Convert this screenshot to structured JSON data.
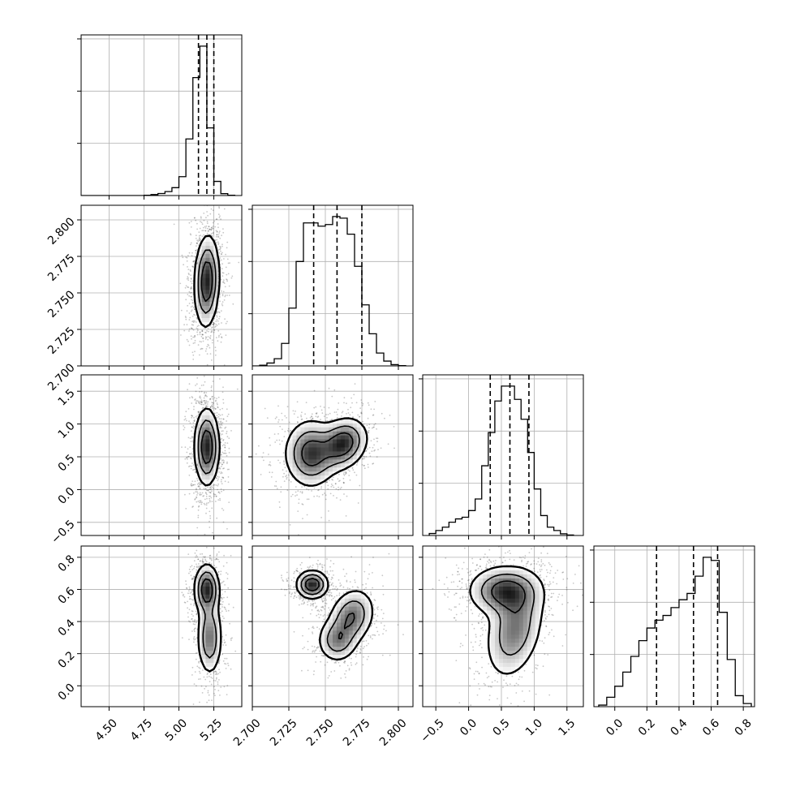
{
  "chart_data": {
    "type": "corner",
    "params": [
      {
        "range": [
          4.3,
          5.45
        ],
        "ticks": [
          4.5,
          4.75,
          5.0,
          5.25
        ],
        "tick_labels": [
          "4.50",
          "4.75",
          "5.00",
          "5.25"
        ],
        "quantiles": [
          5.14,
          5.2,
          5.25
        ]
      },
      {
        "range": [
          2.7,
          2.81
        ],
        "ticks": [
          2.7,
          2.725,
          2.75,
          2.775,
          2.8
        ],
        "tick_labels": [
          "2.700",
          "2.725",
          "2.750",
          "2.775",
          "2.800"
        ],
        "quantiles": [
          2.742,
          2.758,
          2.775
        ]
      },
      {
        "range": [
          -0.7,
          1.75
        ],
        "ticks": [
          -0.5,
          0.0,
          0.5,
          1.0,
          1.5
        ],
        "tick_labels": [
          "−0.5",
          "0.0",
          "0.5",
          "1.0",
          "1.5"
        ],
        "quantiles": [
          0.33,
          0.63,
          0.92
        ]
      },
      {
        "range": [
          -0.13,
          0.87
        ],
        "ticks": [
          0.0,
          0.2,
          0.4,
          0.6,
          0.8
        ],
        "tick_labels": [
          "0.0",
          "0.2",
          "0.4",
          "0.6",
          "0.8"
        ],
        "quantiles": [
          0.26,
          0.49,
          0.64
        ]
      }
    ],
    "histograms": [
      {
        "param": 0,
        "bins": [
          4.3,
          4.35,
          4.4,
          4.45,
          4.5,
          4.55,
          4.6,
          4.65,
          4.7,
          4.75,
          4.8,
          4.85,
          4.9,
          4.95,
          5.0,
          5.05,
          5.1,
          5.15,
          5.2,
          5.25,
          5.3,
          5.35,
          5.4
        ],
        "counts": [
          0,
          0,
          0,
          0,
          0,
          0,
          0,
          0,
          0,
          0.002,
          0.006,
          0.013,
          0.025,
          0.05,
          0.12,
          0.36,
          0.75,
          0.95,
          0.43,
          0.09,
          0.012,
          0.002
        ]
      },
      {
        "param": 1,
        "bins": [
          2.7,
          2.705,
          2.71,
          2.715,
          2.72,
          2.725,
          2.73,
          2.735,
          2.74,
          2.745,
          2.75,
          2.755,
          2.76,
          2.765,
          2.77,
          2.775,
          2.78,
          2.785,
          2.79,
          2.795,
          2.8,
          2.805
        ],
        "counts": [
          0,
          0.004,
          0.018,
          0.045,
          0.14,
          0.36,
          0.65,
          0.89,
          0.89,
          0.87,
          0.88,
          0.93,
          0.92,
          0.82,
          0.62,
          0.38,
          0.2,
          0.08,
          0.03,
          0.008,
          0.002
        ]
      },
      {
        "param": 2,
        "bins": [
          -0.6,
          -0.5,
          -0.4,
          -0.3,
          -0.2,
          -0.1,
          0.0,
          0.1,
          0.2,
          0.3,
          0.4,
          0.5,
          0.6,
          0.7,
          0.8,
          0.9,
          1.0,
          1.1,
          1.2,
          1.3,
          1.4,
          1.5,
          1.6
        ],
        "counts": [
          0.012,
          0.03,
          0.05,
          0.08,
          0.1,
          0.11,
          0.15,
          0.22,
          0.42,
          0.62,
          0.81,
          0.9,
          0.9,
          0.82,
          0.7,
          0.5,
          0.28,
          0.12,
          0.05,
          0.03,
          0.01,
          0.003
        ]
      },
      {
        "param": 3,
        "bins": [
          -0.1,
          -0.05,
          0.0,
          0.05,
          0.1,
          0.15,
          0.2,
          0.25,
          0.3,
          0.35,
          0.4,
          0.45,
          0.5,
          0.55,
          0.6,
          0.65,
          0.7,
          0.75,
          0.8,
          0.85
        ],
        "counts": [
          0.01,
          0.06,
          0.13,
          0.22,
          0.32,
          0.42,
          0.5,
          0.55,
          0.58,
          0.63,
          0.68,
          0.72,
          0.83,
          0.95,
          0.93,
          0.6,
          0.3,
          0.07,
          0.02
        ]
      }
    ],
    "panels_2d": [
      {
        "x": 0,
        "y": 1,
        "blobs": [
          {
            "cx": 5.2,
            "cy": 2.758,
            "sx": 0.045,
            "sy": 0.016,
            "rho": 0.1,
            "w": 1.0
          }
        ]
      },
      {
        "x": 0,
        "y": 2,
        "blobs": [
          {
            "cx": 5.2,
            "cy": 0.65,
            "sx": 0.045,
            "sy": 0.3,
            "rho": 0.0,
            "w": 1.0
          }
        ]
      },
      {
        "x": 1,
        "y": 2,
        "blobs": [
          {
            "cx": 2.762,
            "cy": 0.7,
            "sx": 0.0085,
            "sy": 0.2,
            "rho": 0.2,
            "w": 0.6
          },
          {
            "cx": 2.74,
            "cy": 0.55,
            "sx": 0.009,
            "sy": 0.26,
            "rho": 0.0,
            "w": 0.55
          }
        ]
      },
      {
        "x": 0,
        "y": 3,
        "blobs": [
          {
            "cx": 5.2,
            "cy": 0.6,
            "sx": 0.045,
            "sy": 0.08,
            "rho": 0.0,
            "w": 1.0
          },
          {
            "cx": 5.22,
            "cy": 0.3,
            "sx": 0.045,
            "sy": 0.12,
            "rho": 0.0,
            "w": 0.7
          }
        ]
      },
      {
        "x": 1,
        "y": 3,
        "blobs": [
          {
            "cx": 2.741,
            "cy": 0.63,
            "sx": 0.0055,
            "sy": 0.045,
            "rho": 0.0,
            "w": 1.0
          },
          {
            "cx": 2.768,
            "cy": 0.43,
            "sx": 0.008,
            "sy": 0.09,
            "rho": 0.2,
            "w": 0.7
          },
          {
            "cx": 2.758,
            "cy": 0.28,
            "sx": 0.007,
            "sy": 0.07,
            "rho": 0.0,
            "w": 0.55
          }
        ]
      },
      {
        "x": 2,
        "y": 3,
        "blobs": [
          {
            "cx": 0.55,
            "cy": 0.59,
            "sx": 0.28,
            "sy": 0.08,
            "rho": 0.0,
            "w": 1.0
          },
          {
            "cx": 0.7,
            "cy": 0.35,
            "sx": 0.23,
            "sy": 0.16,
            "rho": 0.3,
            "w": 0.75
          }
        ]
      }
    ],
    "grid": true,
    "colors": {
      "points": "#000000",
      "contour": "#000000",
      "fill_low": "#ffffff",
      "fill_high": "#000000"
    }
  }
}
